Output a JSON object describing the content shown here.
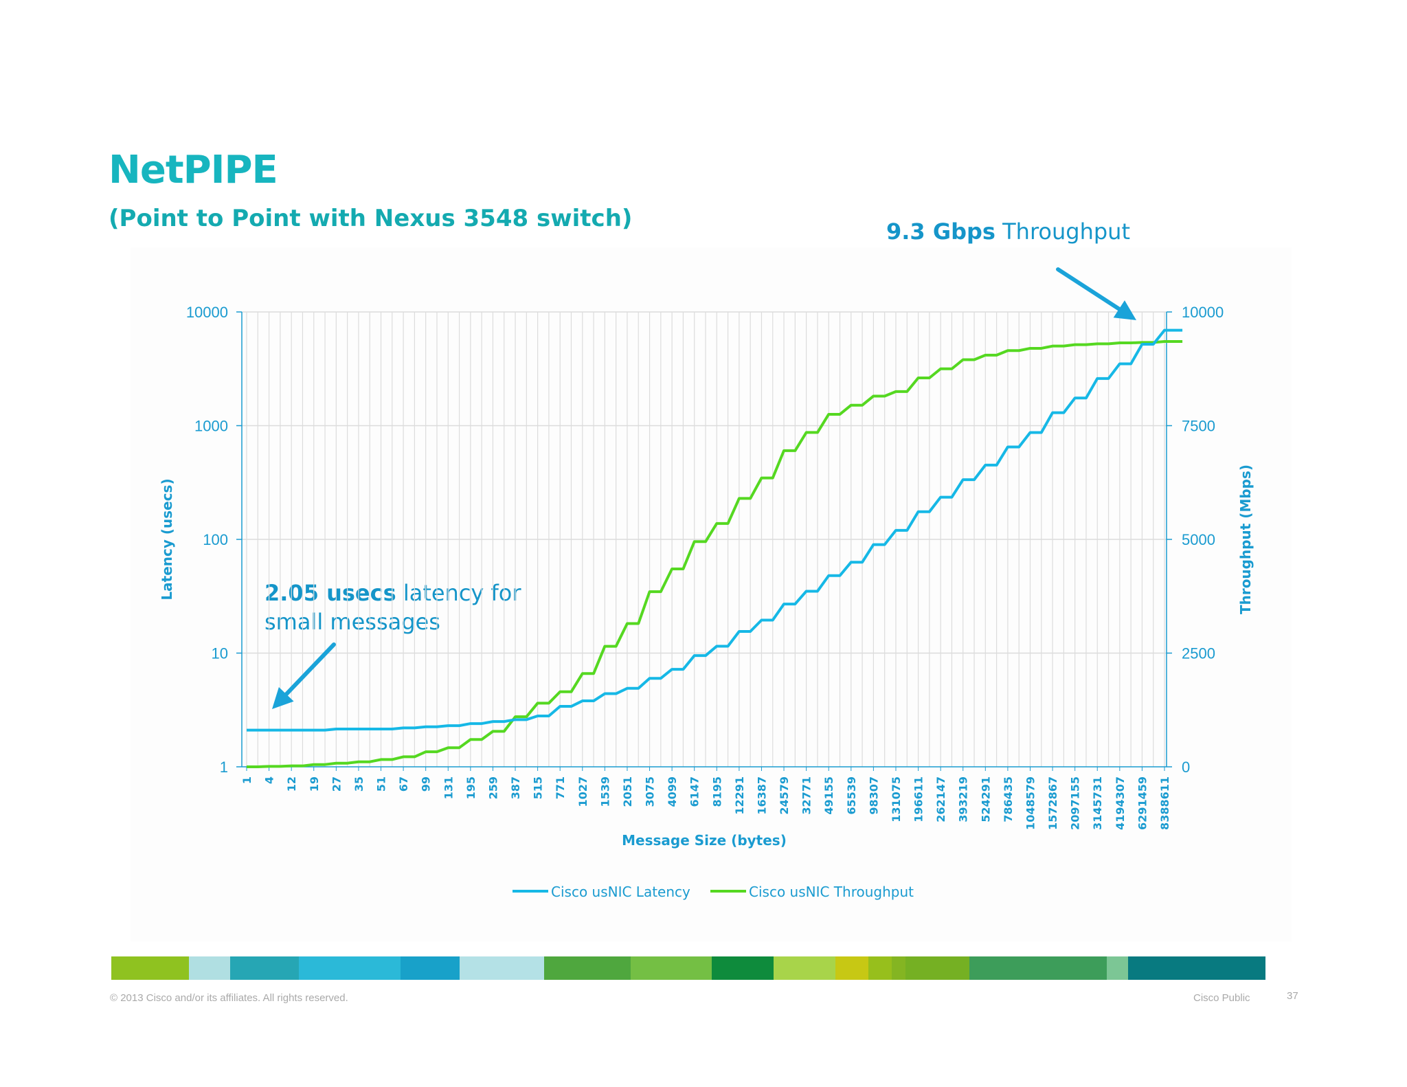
{
  "slide": {
    "title": "NetPIPE",
    "subtitle": "(Point to Point with Nexus 3548 switch)",
    "footer_copyright": "© 2013 Cisco and/or its affiliates. All rights reserved.",
    "footer_classification": "Cisco Public",
    "page_number": "37"
  },
  "annotations": {
    "throughput_bold": "9.3 Gbps",
    "throughput_rest": "Throughput",
    "latency_bold": "2.05 usecs",
    "latency_rest": "latency for small messages"
  },
  "colors": {
    "latency": "#16b8e6",
    "throughput": "#55d821",
    "axis_text": "#1a9bd0",
    "arrow": "#1aa3d9",
    "grid": "#dcdcdc"
  },
  "color_strip": [
    "#8fc220",
    "#b0dfe2",
    "#26a6b4",
    "#2bb9d8",
    "#18a1c9",
    "#b4e1e6",
    "#4fa73e",
    "#74bf44",
    "#0e8b3c",
    "#a8d44a",
    "#c7c814",
    "#97bf1c",
    "#84b522",
    "#75b023",
    "#3d9d5a",
    "#7cc695",
    "#087a80"
  ],
  "chart_data": {
    "type": "line",
    "xlabel": "Message Size (bytes)",
    "ylabel_left": "Latency (usecs)",
    "ylabel_right": "Throughput (Mbps)",
    "y_left_scale": "log",
    "y_left_ticks": [
      "1",
      "10",
      "100",
      "1000",
      "10000"
    ],
    "y_left_range": [
      1,
      10000
    ],
    "y_right_ticks": [
      "0",
      "2500",
      "5000",
      "7500",
      "10000"
    ],
    "y_right_range": [
      0,
      10000
    ],
    "x_tick_labels": [
      "1",
      "4",
      "12",
      "19",
      "27",
      "35",
      "51",
      "67",
      "99",
      "131",
      "195",
      "259",
      "387",
      "515",
      "771",
      "1027",
      "1539",
      "2051",
      "3075",
      "4099",
      "6147",
      "8195",
      "12291",
      "16387",
      "24579",
      "32771",
      "49155",
      "65539",
      "98307",
      "131075",
      "196611",
      "262147",
      "393219",
      "524291",
      "786435",
      "1048579",
      "1572867",
      "2097155",
      "3145731",
      "4194307",
      "6291459",
      "8388611"
    ],
    "legend": [
      "Cisco usNIC Latency",
      "Cisco usNIC Throughput"
    ],
    "series": [
      {
        "name": "Cisco usNIC Latency",
        "axis": "left",
        "values": [
          2.1,
          2.1,
          2.1,
          2.1,
          2.15,
          2.15,
          2.15,
          2.2,
          2.25,
          2.3,
          2.4,
          2.5,
          2.6,
          2.8,
          3.4,
          3.8,
          4.4,
          4.9,
          6.0,
          7.2,
          9.5,
          11.5,
          15.5,
          19.5,
          27,
          35,
          48,
          63,
          90,
          120,
          175,
          235,
          335,
          450,
          650,
          870,
          1300,
          1750,
          2600,
          3500,
          5200,
          6900
        ]
      },
      {
        "name": "Cisco usNIC Throughput",
        "axis": "right",
        "values": [
          0,
          10,
          20,
          50,
          80,
          110,
          160,
          220,
          330,
          420,
          600,
          780,
          1100,
          1400,
          1650,
          2050,
          2650,
          3150,
          3850,
          4350,
          4950,
          5350,
          5900,
          6350,
          6950,
          7350,
          7750,
          7950,
          8150,
          8250,
          8550,
          8750,
          8950,
          9050,
          9150,
          9200,
          9250,
          9280,
          9300,
          9320,
          9330,
          9350
        ]
      }
    ]
  }
}
